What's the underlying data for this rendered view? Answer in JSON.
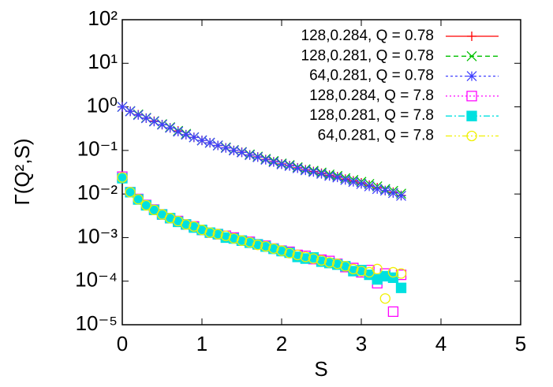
{
  "chart_data": {
    "type": "scatter",
    "xlabel": "S",
    "ylabel": "Γ(Q²,S)",
    "log_y": true,
    "legend": "top-right",
    "xlim": [
      0,
      5
    ],
    "xticks": [
      0,
      1,
      2,
      3,
      4,
      5
    ],
    "ylim": [
      1e-05,
      100
    ],
    "yticks": [
      {
        "value": 100,
        "label": "10²"
      },
      {
        "value": 10,
        "label": "10¹"
      },
      {
        "value": 1,
        "label": "10⁰"
      },
      {
        "value": 0.1,
        "label": "10⁻¹"
      },
      {
        "value": 0.01,
        "label": "10⁻²"
      },
      {
        "value": 0.001,
        "label": "10⁻³"
      },
      {
        "value": 0.0001,
        "label": "10⁻⁴"
      },
      {
        "value": 1e-05,
        "label": "10⁻⁵"
      }
    ],
    "x": [
      0,
      0.1,
      0.2,
      0.3,
      0.4,
      0.5,
      0.6,
      0.7,
      0.8,
      0.9,
      1,
      1.1,
      1.2,
      1.3,
      1.4,
      1.5,
      1.6,
      1.7,
      1.8,
      1.9,
      2,
      2.1,
      2.2,
      2.3,
      2.4,
      2.5,
      2.6,
      2.7,
      2.8,
      2.9,
      3,
      3.1,
      3.2,
      3.3,
      3.4,
      3.5
    ],
    "series": [
      {
        "name": "128,0.284, Q = 0.78",
        "color": "#ff0000",
        "marker": "plus",
        "dash": "",
        "values": [
          1,
          0.79,
          0.66,
          0.55,
          0.47,
          0.39,
          0.33,
          0.28,
          0.23,
          0.2,
          0.17,
          0.15,
          0.13,
          0.115,
          0.1,
          0.091,
          0.079,
          0.071,
          0.062,
          0.055,
          0.049,
          0.045,
          0.04,
          0.036,
          0.033,
          0.03,
          0.027,
          0.025,
          0.022,
          0.02,
          0.018,
          0.016,
          0.014,
          0.012,
          0.011,
          0.0093
        ]
      },
      {
        "name": "128,0.281, Q = 0.78",
        "color": "#00c000",
        "marker": "cross",
        "dash": "6,4",
        "values": [
          1,
          0.8,
          0.67,
          0.56,
          0.47,
          0.4,
          0.34,
          0.28,
          0.24,
          0.2,
          0.17,
          0.15,
          0.13,
          0.117,
          0.102,
          0.092,
          0.081,
          0.072,
          0.064,
          0.057,
          0.05,
          0.046,
          0.041,
          0.037,
          0.034,
          0.031,
          0.028,
          0.026,
          0.023,
          0.021,
          0.019,
          0.017,
          0.015,
          0.013,
          0.0118,
          0.0102
        ]
      },
      {
        "name": "64,0.281, Q = 0.78",
        "color": "#4040ff",
        "marker": "star",
        "dash": "3,3",
        "values": [
          1,
          0.79,
          0.65,
          0.55,
          0.46,
          0.39,
          0.33,
          0.27,
          0.23,
          0.2,
          0.17,
          0.15,
          0.13,
          0.114,
          0.1,
          0.09,
          0.078,
          0.07,
          0.061,
          0.054,
          0.048,
          0.044,
          0.039,
          0.035,
          0.032,
          0.029,
          0.026,
          0.024,
          0.021,
          0.019,
          0.017,
          0.015,
          0.013,
          0.012,
          0.0105,
          0.0091
        ]
      },
      {
        "name": "128,0.284,  Q = 7.8",
        "color": "#ff00ff",
        "marker": "square",
        "dash": "2,3",
        "values": [
          0.025,
          0.011,
          0.0077,
          0.0056,
          0.0044,
          0.0034,
          0.0028,
          0.0024,
          0.002,
          0.0018,
          0.0015,
          0.0013,
          0.0012,
          0.0011,
          0.001,
          0.00085,
          0.0008,
          0.0007,
          0.00065,
          0.00056,
          0.0005,
          0.00047,
          0.0004,
          0.00038,
          0.00032,
          0.00031,
          0.00029,
          0.00025,
          0.00021,
          0.0002,
          0.00016,
          0.00018,
          9e-05,
          0.00015,
          2e-05,
          0.00014
        ]
      },
      {
        "name": "128,0.281, Q = 7.8",
        "color": "#00e0e0",
        "marker": "filled-square",
        "dash": "8,3,2,3",
        "values": [
          0.023,
          0.011,
          0.0075,
          0.0055,
          0.0043,
          0.0034,
          0.0028,
          0.0023,
          0.002,
          0.0017,
          0.0015,
          0.0013,
          0.0012,
          0.001,
          0.00095,
          0.00085,
          0.00076,
          0.0007,
          0.00062,
          0.00055,
          0.00049,
          0.00045,
          0.00036,
          0.00033,
          0.00035,
          0.00028,
          0.00026,
          0.00024,
          0.00022,
          0.00017,
          0.00018,
          0.00014,
          0.00011,
          0.00013,
          0.00012,
          7e-05
        ]
      },
      {
        "name": "64,0.281, Q = 7.8",
        "color": "#f0f000",
        "marker": "circle",
        "dash": "8,3,2,3,2,3",
        "values": [
          0.024,
          0.011,
          0.0076,
          0.0055,
          0.0043,
          0.0034,
          0.0028,
          0.0024,
          0.002,
          0.0018,
          0.0015,
          0.0013,
          0.0012,
          0.0011,
          0.00096,
          0.00085,
          0.00078,
          0.00068,
          0.00063,
          0.00056,
          0.0005,
          0.00044,
          0.0004,
          0.00036,
          0.00033,
          0.0003,
          0.00027,
          0.00025,
          0.00022,
          0.00019,
          0.00017,
          0.00016,
          0.00019,
          4e-05,
          0.00016,
          0.00015
        ]
      }
    ]
  }
}
